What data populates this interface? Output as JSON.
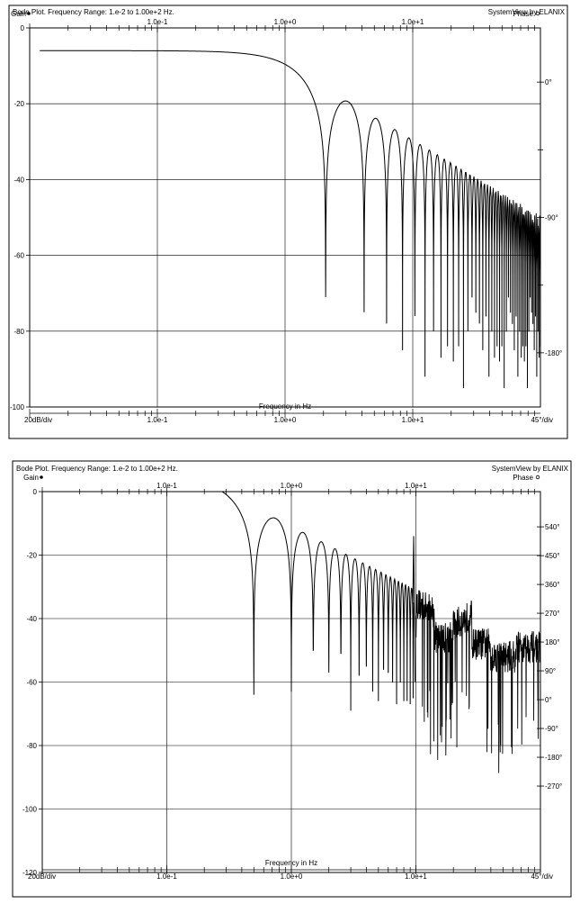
{
  "chart_data": [
    {
      "type": "line",
      "title": "Bode Plot.  Frequency Range: 1.e-2 to 1.00e+2 Hz.",
      "brand": "SystemView by ELANIX",
      "left_axis_label": "Gain",
      "right_axis_label": "Phase",
      "xlabel": "Frequency in Hz",
      "left_scale": "20dB/div",
      "right_scale": "45°/div",
      "x_scale": "log",
      "xlim": [
        0.01,
        100
      ],
      "x_ticks": [
        "1.0e-1",
        "1.0e+0",
        "1.0e+1"
      ],
      "ylim": [
        -100,
        0
      ],
      "y_ticks": [
        "0",
        "-20",
        "-40",
        "-60",
        "-80",
        "-100"
      ],
      "phase_ticks": [
        "0°",
        "-90°",
        "-180°"
      ],
      "phase_tick_values": [
        0,
        -90,
        -180
      ],
      "phase_ylim": [
        -216,
        36
      ],
      "grid": true,
      "series": [
        {
          "kind": "sinc",
          "dc_gain_db": -6,
          "first_null_hz": 2.08,
          "x_start_hz": 0.012,
          "x_end_hz": 100,
          "null_depths_db": [
            -71,
            -75,
            -78,
            -85,
            -76,
            -92,
            -80,
            -87,
            -84,
            -88,
            -84,
            -95,
            -80
          ]
        }
      ]
    },
    {
      "type": "line",
      "title": "Bode Plot.  Frequency Range: 1.e-2 to 1.00e+2 Hz.",
      "brand": "SystemView by ELANIX",
      "left_axis_label": "Gain",
      "right_axis_label": "Phase",
      "xlabel": "Frequency in Hz",
      "left_scale": "20dB/div",
      "right_scale": "45°/div",
      "x_scale": "log",
      "xlim": [
        0.01,
        100
      ],
      "x_ticks": [
        "1.0e-1",
        "1.0e+0",
        "1.0e+1"
      ],
      "ylim": [
        -120,
        0
      ],
      "y_ticks": [
        "0",
        "-20",
        "-40",
        "-60",
        "-80",
        "-100",
        "-120"
      ],
      "phase_ticks": [
        "540°",
        "450°",
        "360°",
        "270°",
        "180°",
        "90°",
        "0°",
        "-90°",
        "-180°",
        "-270°"
      ],
      "phase_tick_values": [
        540,
        450,
        360,
        270,
        180,
        90,
        0,
        -90,
        -180,
        -270
      ],
      "phase_ylim": [
        -540,
        650
      ],
      "grid": true,
      "series": [
        {
          "kind": "sinc",
          "dc_gain_db": 5,
          "first_null_hz": 0.5,
          "x_start_hz": 0.04,
          "x_end_hz": 9.6,
          "null_depths_db": [
            -64,
            -63,
            -50,
            -57,
            -51,
            -69,
            -58,
            -55,
            -63,
            -66,
            -56,
            -57,
            -60,
            -67,
            -60,
            -66,
            -66,
            -67,
            -65
          ],
          "spike": {
            "x_hz": 9.6,
            "y_db": -14
          },
          "noisy_segment": {
            "x_from_hz": 10,
            "x_to_hz": 100
          }
        }
      ]
    }
  ]
}
